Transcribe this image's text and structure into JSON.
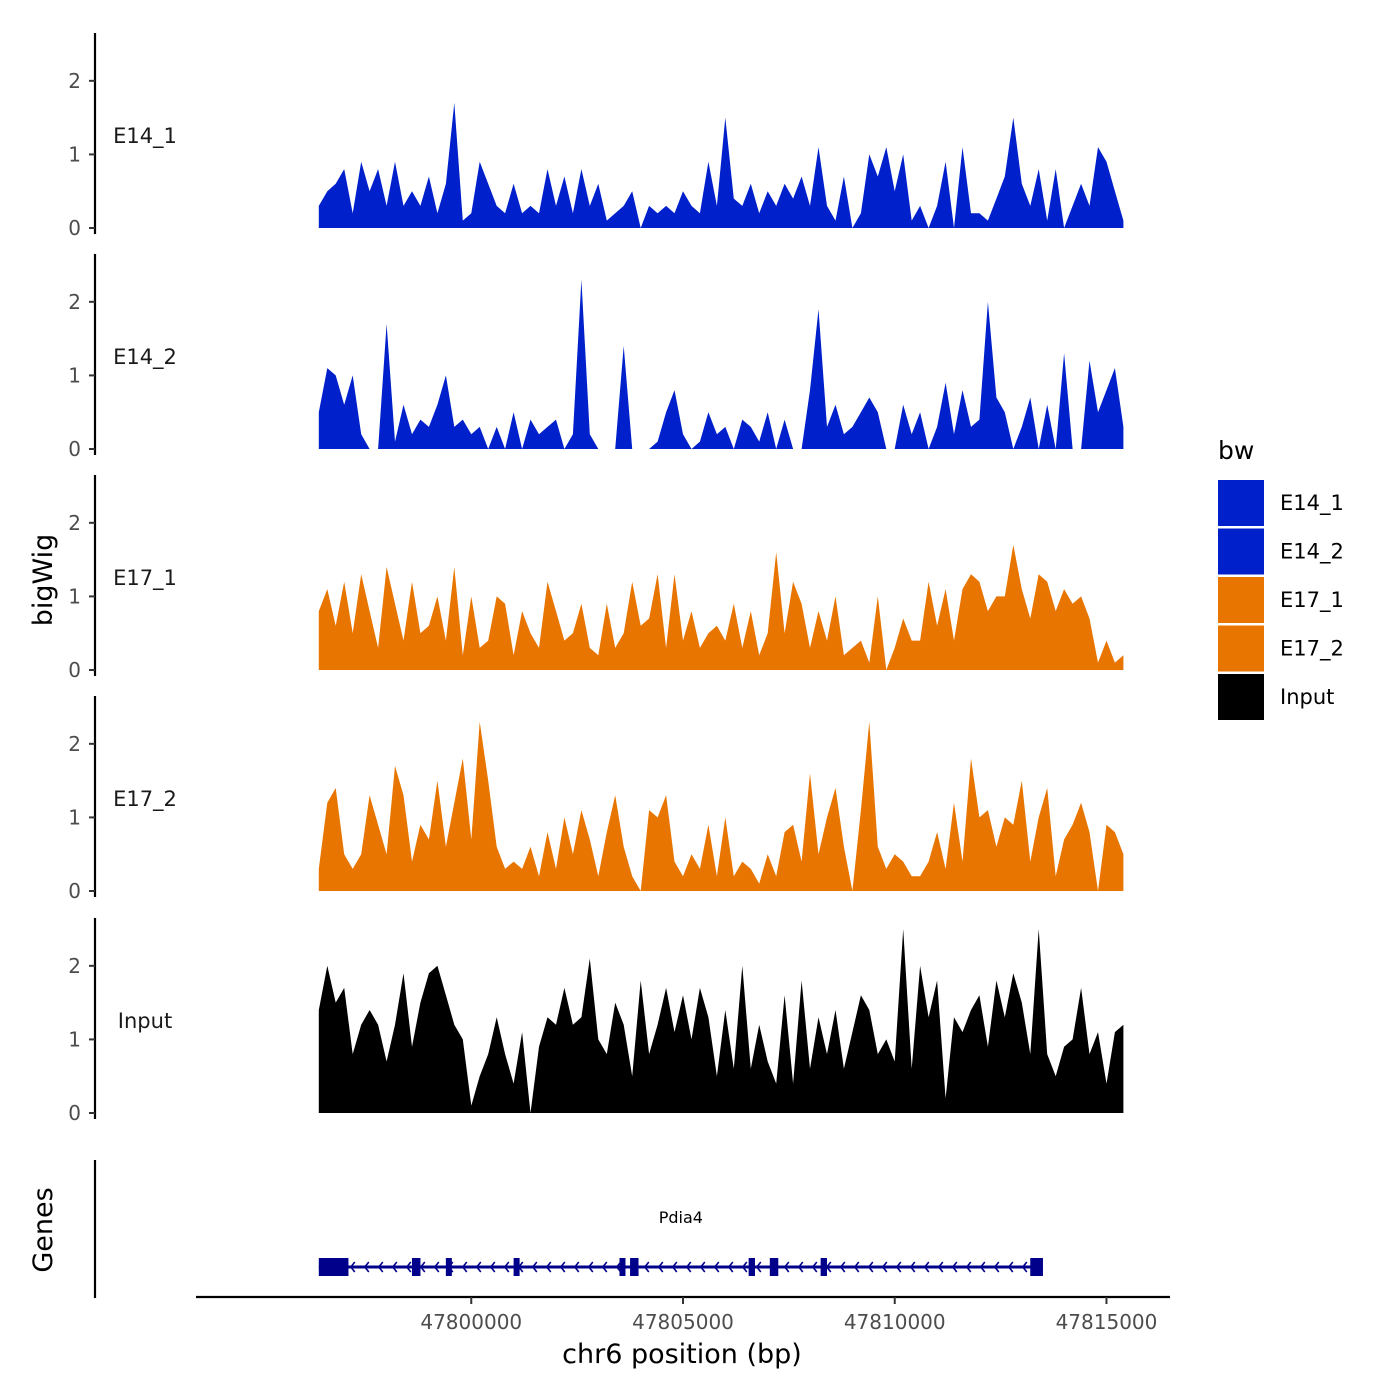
{
  "chart_data": {
    "type": "area",
    "title": "",
    "ylabel": "bigWig",
    "xlabel": "chr6 position (bp)",
    "xlim": [
      47793500,
      47816500
    ],
    "ylim": [
      0,
      2.65
    ],
    "yticks": [
      0,
      1,
      2
    ],
    "xticks": [
      47800000,
      47805000,
      47810000,
      47815000
    ],
    "xtick_labels": [
      "47800000",
      "47805000",
      "47810000",
      "47815000"
    ],
    "legend_title": "bw",
    "legend_position": "right",
    "genes_label": "Genes",
    "colors": {
      "E14_1": "#0020cc",
      "E14_2": "#0020cc",
      "E17_1": "#e87500",
      "E17_2": "#e87500",
      "Input": "#000000"
    },
    "series": [
      {
        "name": "E14_1",
        "x": [
          47796400,
          47796600,
          47796800,
          47797000,
          47797200,
          47797400,
          47797600,
          47797800,
          47798000,
          47798200,
          47798400,
          47798600,
          47798800,
          47799000,
          47799200,
          47799400,
          47799600,
          47799800,
          47800000,
          47800200,
          47800400,
          47800600,
          47800800,
          47801000,
          47801200,
          47801400,
          47801600,
          47801800,
          47802000,
          47802200,
          47802400,
          47802600,
          47802800,
          47803000,
          47803200,
          47803400,
          47803600,
          47803800,
          47804000,
          47804200,
          47804400,
          47804600,
          47804800,
          47805000,
          47805200,
          47805400,
          47805600,
          47805800,
          47806000,
          47806200,
          47806400,
          47806600,
          47806800,
          47807000,
          47807200,
          47807400,
          47807600,
          47807800,
          47808000,
          47808200,
          47808400,
          47808600,
          47808800,
          47809000,
          47809200,
          47809400,
          47809600,
          47809800,
          47810000,
          47810200,
          47810400,
          47810600,
          47810800,
          47811000,
          47811200,
          47811400,
          47811600,
          47811800,
          47812000,
          47812200,
          47812400,
          47812600,
          47812800,
          47813000,
          47813200,
          47813400,
          47813600,
          47813800,
          47814000,
          47814200,
          47814400,
          47814600,
          47814800,
          47815000,
          47815200,
          47815400
        ],
        "values": [
          0.3,
          0.5,
          0.6,
          0.8,
          0.2,
          0.9,
          0.5,
          0.8,
          0.3,
          0.9,
          0.3,
          0.5,
          0.3,
          0.7,
          0.2,
          0.6,
          1.7,
          0.1,
          0.2,
          0.9,
          0.6,
          0.3,
          0.2,
          0.6,
          0.2,
          0.3,
          0.2,
          0.8,
          0.3,
          0.7,
          0.2,
          0.8,
          0.3,
          0.6,
          0.1,
          0.2,
          0.3,
          0.5,
          0.0,
          0.3,
          0.2,
          0.3,
          0.2,
          0.5,
          0.3,
          0.2,
          0.9,
          0.3,
          1.5,
          0.4,
          0.3,
          0.6,
          0.2,
          0.5,
          0.3,
          0.6,
          0.4,
          0.7,
          0.3,
          1.1,
          0.3,
          0.1,
          0.7,
          0.0,
          0.2,
          1.0,
          0.7,
          1.1,
          0.5,
          1.0,
          0.1,
          0.3,
          0.0,
          0.3,
          0.9,
          0.0,
          1.1,
          0.2,
          0.2,
          0.1,
          0.4,
          0.7,
          1.5,
          0.6,
          0.3,
          0.8,
          0.1,
          0.8,
          0.0,
          0.3,
          0.6,
          0.3,
          1.1,
          0.9,
          0.5,
          0.1
        ]
      },
      {
        "name": "E14_2",
        "x": [
          47796400,
          47796600,
          47796800,
          47797000,
          47797200,
          47797400,
          47797600,
          47797800,
          47798000,
          47798200,
          47798400,
          47798600,
          47798800,
          47799000,
          47799200,
          47799400,
          47799600,
          47799800,
          47800000,
          47800200,
          47800400,
          47800600,
          47800800,
          47801000,
          47801200,
          47801400,
          47801600,
          47801800,
          47802000,
          47802200,
          47802400,
          47802600,
          47802800,
          47803000,
          47803200,
          47803400,
          47803600,
          47803800,
          47804000,
          47804200,
          47804400,
          47804600,
          47804800,
          47805000,
          47805200,
          47805400,
          47805600,
          47805800,
          47806000,
          47806200,
          47806400,
          47806600,
          47806800,
          47807000,
          47807200,
          47807400,
          47807600,
          47807800,
          47808000,
          47808200,
          47808400,
          47808600,
          47808800,
          47809000,
          47809200,
          47809400,
          47809600,
          47809800,
          47810000,
          47810200,
          47810400,
          47810600,
          47810800,
          47811000,
          47811200,
          47811400,
          47811600,
          47811800,
          47812000,
          47812200,
          47812400,
          47812600,
          47812800,
          47813000,
          47813200,
          47813400,
          47813600,
          47813800,
          47814000,
          47814200,
          47814400,
          47814600,
          47814800,
          47815000,
          47815200,
          47815400
        ],
        "values": [
          0.5,
          1.1,
          1.0,
          0.6,
          1.0,
          0.2,
          0.0,
          0.0,
          1.7,
          0.1,
          0.6,
          0.2,
          0.4,
          0.3,
          0.6,
          1.0,
          0.3,
          0.4,
          0.2,
          0.3,
          0.0,
          0.3,
          0.0,
          0.5,
          0.0,
          0.4,
          0.2,
          0.3,
          0.4,
          0.0,
          0.2,
          2.3,
          0.2,
          0.0,
          0.0,
          0.0,
          1.4,
          0.0,
          0.0,
          0.0,
          0.1,
          0.5,
          0.8,
          0.2,
          0.0,
          0.1,
          0.5,
          0.2,
          0.3,
          0.0,
          0.4,
          0.3,
          0.1,
          0.5,
          0.0,
          0.4,
          0.0,
          0.0,
          0.8,
          1.9,
          0.3,
          0.6,
          0.2,
          0.3,
          0.5,
          0.7,
          0.5,
          0.0,
          0.0,
          0.6,
          0.2,
          0.5,
          0.0,
          0.3,
          0.9,
          0.2,
          0.8,
          0.3,
          0.4,
          2.0,
          0.7,
          0.5,
          0.0,
          0.3,
          0.7,
          0.0,
          0.6,
          0.0,
          1.3,
          0.0,
          0.0,
          1.2,
          0.5,
          0.8,
          1.1,
          0.3
        ]
      },
      {
        "name": "E17_1",
        "x": [
          47796400,
          47796600,
          47796800,
          47797000,
          47797200,
          47797400,
          47797600,
          47797800,
          47798000,
          47798200,
          47798400,
          47798600,
          47798800,
          47799000,
          47799200,
          47799400,
          47799600,
          47799800,
          47800000,
          47800200,
          47800400,
          47800600,
          47800800,
          47801000,
          47801200,
          47801400,
          47801600,
          47801800,
          47802000,
          47802200,
          47802400,
          47802600,
          47802800,
          47803000,
          47803200,
          47803400,
          47803600,
          47803800,
          47804000,
          47804200,
          47804400,
          47804600,
          47804800,
          47805000,
          47805200,
          47805400,
          47805600,
          47805800,
          47806000,
          47806200,
          47806400,
          47806600,
          47806800,
          47807000,
          47807200,
          47807400,
          47807600,
          47807800,
          47808000,
          47808200,
          47808400,
          47808600,
          47808800,
          47809000,
          47809200,
          47809400,
          47809600,
          47809800,
          47810000,
          47810200,
          47810400,
          47810600,
          47810800,
          47811000,
          47811200,
          47811400,
          47811600,
          47811800,
          47812000,
          47812200,
          47812400,
          47812600,
          47812800,
          47813000,
          47813200,
          47813400,
          47813600,
          47813800,
          47814000,
          47814200,
          47814400,
          47814600,
          47814800,
          47815000,
          47815200,
          47815400
        ],
        "values": [
          0.8,
          1.1,
          0.6,
          1.2,
          0.5,
          1.3,
          0.8,
          0.3,
          1.4,
          0.9,
          0.4,
          1.2,
          0.5,
          0.6,
          1.0,
          0.4,
          1.4,
          0.2,
          1.0,
          0.3,
          0.4,
          1.0,
          0.9,
          0.2,
          0.8,
          0.5,
          0.3,
          1.2,
          0.8,
          0.4,
          0.5,
          0.9,
          0.3,
          0.2,
          0.9,
          0.3,
          0.5,
          1.2,
          0.6,
          0.7,
          1.3,
          0.3,
          1.3,
          0.4,
          0.8,
          0.3,
          0.5,
          0.6,
          0.4,
          0.9,
          0.3,
          0.8,
          0.2,
          0.5,
          1.6,
          0.5,
          1.2,
          0.9,
          0.3,
          0.8,
          0.4,
          1.0,
          0.2,
          0.3,
          0.4,
          0.1,
          1.0,
          0.0,
          0.3,
          0.7,
          0.4,
          0.4,
          1.2,
          0.6,
          1.1,
          0.4,
          1.1,
          1.3,
          1.2,
          0.8,
          1.0,
          1.0,
          1.7,
          1.1,
          0.7,
          1.3,
          1.2,
          0.8,
          1.1,
          0.9,
          1.0,
          0.7,
          0.1,
          0.4,
          0.1,
          0.2
        ]
      },
      {
        "name": "E17_2",
        "x": [
          47796400,
          47796600,
          47796800,
          47797000,
          47797200,
          47797400,
          47797600,
          47797800,
          47798000,
          47798200,
          47798400,
          47798600,
          47798800,
          47799000,
          47799200,
          47799400,
          47799600,
          47799800,
          47800000,
          47800200,
          47800400,
          47800600,
          47800800,
          47801000,
          47801200,
          47801400,
          47801600,
          47801800,
          47802000,
          47802200,
          47802400,
          47802600,
          47802800,
          47803000,
          47803200,
          47803400,
          47803600,
          47803800,
          47804000,
          47804200,
          47804400,
          47804600,
          47804800,
          47805000,
          47805200,
          47805400,
          47805600,
          47805800,
          47806000,
          47806200,
          47806400,
          47806600,
          47806800,
          47807000,
          47807200,
          47807400,
          47807600,
          47807800,
          47808000,
          47808200,
          47808400,
          47808600,
          47808800,
          47809000,
          47809200,
          47809400,
          47809600,
          47809800,
          47810000,
          47810200,
          47810400,
          47810600,
          47810800,
          47811000,
          47811200,
          47811400,
          47811600,
          47811800,
          47812000,
          47812200,
          47812400,
          47812600,
          47812800,
          47813000,
          47813200,
          47813400,
          47813600,
          47813800,
          47814000,
          47814200,
          47814400,
          47814600,
          47814800,
          47815000,
          47815200,
          47815400
        ],
        "values": [
          0.3,
          1.2,
          1.4,
          0.5,
          0.3,
          0.5,
          1.3,
          0.9,
          0.5,
          1.7,
          1.3,
          0.4,
          0.9,
          0.7,
          1.5,
          0.6,
          1.2,
          1.8,
          0.7,
          2.3,
          1.5,
          0.6,
          0.3,
          0.4,
          0.3,
          0.6,
          0.2,
          0.8,
          0.3,
          1.0,
          0.5,
          1.1,
          0.7,
          0.2,
          0.8,
          1.3,
          0.6,
          0.2,
          0.0,
          1.1,
          1.0,
          1.3,
          0.4,
          0.2,
          0.5,
          0.3,
          0.9,
          0.2,
          1.0,
          0.2,
          0.4,
          0.3,
          0.1,
          0.5,
          0.2,
          0.8,
          0.9,
          0.4,
          1.6,
          0.5,
          1.0,
          1.4,
          0.6,
          0.0,
          1.1,
          2.3,
          0.6,
          0.3,
          0.5,
          0.4,
          0.2,
          0.2,
          0.4,
          0.8,
          0.3,
          1.2,
          0.4,
          1.8,
          1.0,
          1.1,
          0.6,
          1.0,
          0.9,
          1.5,
          0.4,
          1.0,
          1.4,
          0.2,
          0.7,
          0.9,
          1.2,
          0.8,
          0.0,
          0.9,
          0.8,
          0.5
        ]
      },
      {
        "name": "Input",
        "x": [
          47796400,
          47796600,
          47796800,
          47797000,
          47797200,
          47797400,
          47797600,
          47797800,
          47798000,
          47798200,
          47798400,
          47798600,
          47798800,
          47799000,
          47799200,
          47799400,
          47799600,
          47799800,
          47800000,
          47800200,
          47800400,
          47800600,
          47800800,
          47801000,
          47801200,
          47801400,
          47801600,
          47801800,
          47802000,
          47802200,
          47802400,
          47802600,
          47802800,
          47803000,
          47803200,
          47803400,
          47803600,
          47803800,
          47804000,
          47804200,
          47804400,
          47804600,
          47804800,
          47805000,
          47805200,
          47805400,
          47805600,
          47805800,
          47806000,
          47806200,
          47806400,
          47806600,
          47806800,
          47807000,
          47807200,
          47807400,
          47807600,
          47807800,
          47808000,
          47808200,
          47808400,
          47808600,
          47808800,
          47809000,
          47809200,
          47809400,
          47809600,
          47809800,
          47810000,
          47810200,
          47810400,
          47810600,
          47810800,
          47811000,
          47811200,
          47811400,
          47811600,
          47811800,
          47812000,
          47812200,
          47812400,
          47812600,
          47812800,
          47813000,
          47813200,
          47813400,
          47813600,
          47813800,
          47814000,
          47814200,
          47814400,
          47814600,
          47814800,
          47815000,
          47815200,
          47815400
        ],
        "values": [
          1.4,
          2.0,
          1.5,
          1.7,
          0.8,
          1.2,
          1.4,
          1.2,
          0.7,
          1.2,
          1.9,
          0.9,
          1.5,
          1.9,
          2.0,
          1.6,
          1.2,
          1.0,
          0.1,
          0.5,
          0.8,
          1.3,
          0.8,
          0.4,
          1.1,
          0.0,
          0.9,
          1.3,
          1.2,
          1.7,
          1.2,
          1.3,
          2.1,
          1.0,
          0.8,
          1.5,
          1.2,
          0.5,
          1.8,
          0.8,
          1.2,
          1.7,
          1.1,
          1.6,
          1.0,
          1.7,
          1.3,
          0.5,
          1.4,
          0.6,
          2.0,
          0.6,
          1.2,
          0.7,
          0.4,
          1.6,
          0.4,
          1.8,
          0.6,
          1.3,
          0.8,
          1.4,
          0.6,
          1.1,
          1.6,
          1.4,
          0.8,
          1.0,
          0.7,
          2.5,
          0.6,
          2.0,
          1.3,
          1.8,
          0.2,
          1.3,
          1.1,
          1.4,
          1.6,
          0.9,
          1.8,
          1.3,
          1.9,
          1.5,
          0.8,
          2.5,
          0.8,
          0.5,
          0.9,
          1.0,
          1.7,
          0.8,
          1.1,
          0.4,
          1.1,
          1.2
        ]
      }
    ],
    "genes": [
      {
        "name": "Pdia4",
        "start": 47796400,
        "end": 47813500,
        "strand": "-",
        "exons": [
          [
            47796400,
            47797100
          ],
          [
            47798600,
            47798800
          ],
          [
            47799400,
            47799500
          ],
          [
            47801000,
            47801100
          ],
          [
            47803500,
            47803600
          ],
          [
            47803750,
            47803950
          ],
          [
            47806550,
            47806700
          ],
          [
            47807050,
            47807250
          ],
          [
            47808250,
            47808400
          ],
          [
            47813200,
            47813500
          ]
        ]
      }
    ]
  }
}
